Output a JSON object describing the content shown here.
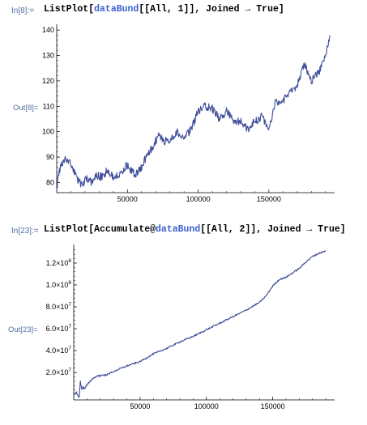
{
  "cells": [
    {
      "in_label": "In[8]:=",
      "code_prefix": "ListPlot[",
      "code_symbol": "dataBund",
      "code_suffix": "[[All, 1]], Joined → True]",
      "out_label": "Out[8]=",
      "chart_data": {
        "type": "line",
        "title": "",
        "xlabel": "",
        "ylabel": "",
        "xlim": [
          0,
          193000
        ],
        "ylim": [
          76,
          141
        ],
        "x_ticks": [
          50000,
          100000,
          150000
        ],
        "x_tick_labels": [
          "50000",
          "100000",
          "150000"
        ],
        "y_ticks": [
          80,
          90,
          100,
          110,
          120,
          130,
          140
        ],
        "y_tick_labels": [
          "80",
          "90",
          "100",
          "110",
          "120",
          "130",
          "140"
        ],
        "series": [
          {
            "x": [
              0,
              3000,
              6000,
              9000,
              12000,
              15000,
              18000,
              21000,
              24000,
              28000,
              32000,
              36000,
              40000,
              45000,
              50000,
              55000,
              60000,
              64000,
              68000,
              72000,
              76000,
              80000,
              85000,
              90000,
              95000,
              100000,
              105000,
              110000,
              115000,
              120000,
              125000,
              130000,
              135000,
              140000,
              145000,
              150000,
              155000,
              160000,
              165000,
              170000,
              175000,
              180000,
              185000,
              190000,
              193000
            ],
            "y": [
              79,
              87,
              89,
              88,
              85,
              81,
              79,
              82,
              80,
              83,
              82,
              85,
              82,
              84,
              87,
              83,
              86,
              91,
              94,
              99,
              96,
              97,
              100,
              97,
              101,
              108,
              110,
              109,
              105,
              108,
              104,
              104,
              101,
              104,
              106,
              101,
              112,
              112,
              116,
              118,
              127,
              120,
              123,
              130,
              138
            ]
          }
        ],
        "line_color": "#3f4d99"
      }
    },
    {
      "in_label": "In[23]:=",
      "code_prefix": "ListPlot[Accumulate@",
      "code_symbol": "dataBund",
      "code_suffix": "[[All, 2]], Joined → True]",
      "out_label": "Out[23]=",
      "chart_data": {
        "type": "line",
        "title": "",
        "xlabel": "",
        "ylabel": "",
        "xlim": [
          0,
          193000
        ],
        "ylim": [
          -5000000,
          134000000
        ],
        "x_ticks": [
          50000,
          100000,
          150000
        ],
        "x_tick_labels": [
          "50000",
          "100000",
          "150000"
        ],
        "y_ticks": [
          20000000,
          40000000,
          60000000,
          80000000,
          100000000,
          120000000
        ],
        "y_tick_labels": [
          {
            "mant": "2.0",
            "exp": "7"
          },
          {
            "mant": "4.0",
            "exp": "7"
          },
          {
            "mant": "6.0",
            "exp": "7"
          },
          {
            "mant": "8.0",
            "exp": "7"
          },
          {
            "mant": "1.0",
            "exp": "8"
          },
          {
            "mant": "1.2",
            "exp": "8"
          }
        ],
        "series": [
          {
            "x": [
              0,
              2000,
              4000,
              5000,
              6000,
              7000,
              8000,
              10000,
              14000,
              18000,
              20000,
              25000,
              30000,
              40000,
              50000,
              60000,
              70000,
              80000,
              90000,
              100000,
              110000,
              120000,
              130000,
              140000,
              145000,
              150000,
              155000,
              160000,
              165000,
              170000,
              175000,
              180000,
              185000,
              190000
            ],
            "y": [
              0,
              2000000,
              -3000000,
              12000000,
              4000000,
              7000000,
              5000000,
              9000000,
              14000000,
              17000000,
              17000000,
              18000000,
              21000000,
              26000000,
              30000000,
              37000000,
              42000000,
              48000000,
              53000000,
              59000000,
              65000000,
              71000000,
              77000000,
              84000000,
              90000000,
              99000000,
              105000000,
              107000000,
              111000000,
              115000000,
              121000000,
              126000000,
              129000000,
              131000000
            ]
          }
        ],
        "line_color": "#3f4d99"
      }
    }
  ]
}
